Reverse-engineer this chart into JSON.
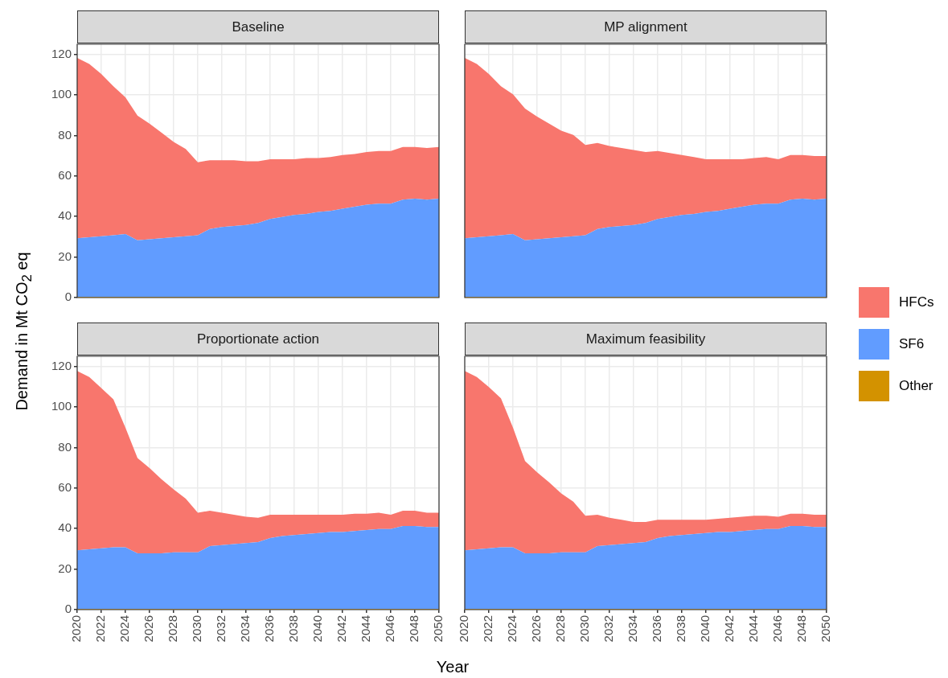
{
  "chart_data": [
    {
      "type": "area",
      "title": "Baseline",
      "ylabel": "Demand in Mt CO$_{2}$ eq",
      "legend": "right",
      "stacked": true,
      "x": [
        2020,
        2021,
        2022,
        2023,
        2024,
        2025,
        2026,
        2027,
        2028,
        2029,
        2030,
        2031,
        2032,
        2033,
        2034,
        2035,
        2036,
        2037,
        2038,
        2039,
        2040,
        2041,
        2042,
        2043,
        2044,
        2045,
        2046,
        2047,
        2048,
        2049,
        2050
      ],
      "xlim": [
        2020,
        2050
      ],
      "xticks": [
        2020,
        2022,
        2024,
        2026,
        2028,
        2030,
        2032,
        2034,
        2036,
        2038,
        2040,
        2042,
        2044,
        2046,
        2048,
        2050
      ],
      "ylim": [
        0,
        125
      ],
      "yticks": [
        0,
        20,
        40,
        60,
        80,
        100,
        120
      ],
      "grid": true,
      "tick_labels": "y",
      "series": [
        {
          "name": "Other",
          "color": "#d39200",
          "values": [
            0.3,
            0.3,
            0.3,
            0.3,
            0.3,
            0.3,
            0.3,
            0.3,
            0.3,
            0.3,
            0.3,
            0.3,
            0.3,
            0.3,
            0.3,
            0.3,
            0.3,
            0.3,
            0.3,
            0.3,
            0.3,
            0.3,
            0.3,
            0.3,
            0.3,
            0.3,
            0.3,
            0.3,
            0.3,
            0.3,
            0.3
          ]
        },
        {
          "name": "SF6",
          "color": "#619cff",
          "values": [
            29,
            29.5,
            30,
            30.5,
            31,
            28,
            28.5,
            29,
            29.5,
            30,
            30.5,
            33.5,
            34.5,
            35,
            35.5,
            36.5,
            38.5,
            39.5,
            40.5,
            41,
            42,
            42.5,
            43.5,
            44.5,
            45.5,
            46,
            46,
            48,
            48.5,
            48,
            48.5
          ]
        },
        {
          "name": "HFCs",
          "color": "#f8766d",
          "values": [
            89,
            85.5,
            80,
            73.5,
            67.5,
            61.5,
            57,
            52,
            47,
            43,
            36,
            34,
            33,
            32.5,
            31.5,
            30.5,
            29.5,
            28.5,
            27.5,
            27.5,
            26.5,
            26.5,
            26.5,
            26,
            26,
            26,
            26,
            26,
            25.5,
            25.5,
            25.5
          ]
        }
      ]
    },
    {
      "type": "area",
      "title": "MP alignment",
      "legend": "right",
      "stacked": true,
      "x": [
        2020,
        2021,
        2022,
        2023,
        2024,
        2025,
        2026,
        2027,
        2028,
        2029,
        2030,
        2031,
        2032,
        2033,
        2034,
        2035,
        2036,
        2037,
        2038,
        2039,
        2040,
        2041,
        2042,
        2043,
        2044,
        2045,
        2046,
        2047,
        2048,
        2049,
        2050
      ],
      "xlim": [
        2020,
        2050
      ],
      "xticks": [
        2020,
        2022,
        2024,
        2026,
        2028,
        2030,
        2032,
        2034,
        2036,
        2038,
        2040,
        2042,
        2044,
        2046,
        2048,
        2050
      ],
      "ylim": [
        0,
        125
      ],
      "yticks": [
        0,
        20,
        40,
        60,
        80,
        100,
        120
      ],
      "grid": true,
      "tick_labels": false,
      "series": [
        {
          "name": "Other",
          "color": "#d39200",
          "values": [
            0.3,
            0.3,
            0.3,
            0.3,
            0.3,
            0.3,
            0.3,
            0.3,
            0.3,
            0.3,
            0.3,
            0.3,
            0.3,
            0.3,
            0.3,
            0.3,
            0.3,
            0.3,
            0.3,
            0.3,
            0.3,
            0.3,
            0.3,
            0.3,
            0.3,
            0.3,
            0.3,
            0.3,
            0.3,
            0.3,
            0.3
          ]
        },
        {
          "name": "SF6",
          "color": "#619cff",
          "values": [
            29,
            29.5,
            30,
            30.5,
            31,
            28,
            28.5,
            29,
            29.5,
            30,
            30.5,
            33.5,
            34.5,
            35,
            35.5,
            36.5,
            38.5,
            39.5,
            40.5,
            41,
            42,
            42.5,
            43.5,
            44.5,
            45.5,
            46,
            46,
            48,
            48.5,
            48,
            48.5
          ]
        },
        {
          "name": "HFCs",
          "color": "#f8766d",
          "values": [
            89,
            85.5,
            80,
            73.5,
            69,
            65,
            60.5,
            56.5,
            52.5,
            50,
            44.5,
            42.5,
            40,
            38.5,
            37,
            35,
            33.5,
            31.5,
            29.5,
            28,
            26,
            25.5,
            24.5,
            23.5,
            23,
            23,
            22,
            22,
            21.5,
            21.5,
            21
          ]
        }
      ]
    },
    {
      "type": "area",
      "title": "Proportionate action",
      "xlabel": "Year",
      "legend": "right",
      "stacked": true,
      "x": [
        2020,
        2021,
        2022,
        2023,
        2024,
        2025,
        2026,
        2027,
        2028,
        2029,
        2030,
        2031,
        2032,
        2033,
        2034,
        2035,
        2036,
        2037,
        2038,
        2039,
        2040,
        2041,
        2042,
        2043,
        2044,
        2045,
        2046,
        2047,
        2048,
        2049,
        2050
      ],
      "xlim": [
        2020,
        2050
      ],
      "xticks": [
        2020,
        2022,
        2024,
        2026,
        2028,
        2030,
        2032,
        2034,
        2036,
        2038,
        2040,
        2042,
        2044,
        2046,
        2048,
        2050
      ],
      "ylim": [
        0,
        125
      ],
      "yticks": [
        0,
        20,
        40,
        60,
        80,
        100,
        120
      ],
      "grid": true,
      "series": [
        {
          "name": "Other",
          "color": "#d39200",
          "values": [
            0.3,
            0.3,
            0.3,
            0.3,
            0.3,
            0.3,
            0.3,
            0.3,
            0.3,
            0.3,
            0.3,
            0.3,
            0.3,
            0.3,
            0.3,
            0.3,
            0.3,
            0.3,
            0.3,
            0.3,
            0.3,
            0.3,
            0.3,
            0.3,
            0.3,
            0.3,
            0.3,
            0.3,
            0.3,
            0.3,
            0.3
          ]
        },
        {
          "name": "SF6",
          "color": "#619cff",
          "values": [
            29,
            29.5,
            30,
            30.5,
            30.5,
            27.5,
            27.5,
            27.5,
            28,
            28,
            28,
            31,
            31.5,
            32,
            32.5,
            33,
            35,
            36,
            36.5,
            37,
            37.5,
            38,
            38,
            38.5,
            39,
            39.5,
            39.5,
            41,
            41,
            40.5,
            40.5
          ]
        },
        {
          "name": "HFCs",
          "color": "#f8766d",
          "values": [
            88.5,
            85,
            79,
            73,
            59,
            47,
            42,
            36.5,
            31,
            26.5,
            19.5,
            17.5,
            16,
            14.5,
            13,
            12,
            11.5,
            10.5,
            10,
            9.5,
            9,
            8.5,
            8.5,
            8.5,
            8,
            8,
            7,
            7.5,
            7.5,
            7,
            7
          ]
        }
      ]
    },
    {
      "type": "area",
      "title": "Maximum feasibility",
      "legend": "right",
      "stacked": true,
      "x": [
        2020,
        2021,
        2022,
        2023,
        2024,
        2025,
        2026,
        2027,
        2028,
        2029,
        2030,
        2031,
        2032,
        2033,
        2034,
        2035,
        2036,
        2037,
        2038,
        2039,
        2040,
        2041,
        2042,
        2043,
        2044,
        2045,
        2046,
        2047,
        2048,
        2049,
        2050
      ],
      "xlim": [
        2020,
        2050
      ],
      "xticks": [
        2020,
        2022,
        2024,
        2026,
        2028,
        2030,
        2032,
        2034,
        2036,
        2038,
        2040,
        2042,
        2044,
        2046,
        2048,
        2050
      ],
      "ylim": [
        0,
        125
      ],
      "yticks": [
        0,
        20,
        40,
        60,
        80,
        100,
        120
      ],
      "grid": true,
      "tick_labels": "x",
      "series": [
        {
          "name": "Other",
          "color": "#d39200",
          "values": [
            0.3,
            0.3,
            0.3,
            0.3,
            0.3,
            0.3,
            0.3,
            0.3,
            0.3,
            0.3,
            0.3,
            0.3,
            0.3,
            0.3,
            0.3,
            0.3,
            0.3,
            0.3,
            0.3,
            0.3,
            0.3,
            0.3,
            0.3,
            0.3,
            0.3,
            0.3,
            0.3,
            0.3,
            0.3,
            0.3,
            0.3
          ]
        },
        {
          "name": "SF6",
          "color": "#619cff",
          "values": [
            29,
            29.5,
            30,
            30.5,
            30.5,
            27.5,
            27.5,
            27.5,
            28,
            28,
            28,
            31,
            31.5,
            32,
            32.5,
            33,
            35,
            36,
            36.5,
            37,
            37.5,
            38,
            38,
            38.5,
            39,
            39.5,
            39.5,
            41,
            41,
            40.5,
            40.5
          ]
        },
        {
          "name": "HFCs",
          "color": "#f8766d",
          "values": [
            88.5,
            85,
            79.5,
            73.5,
            59,
            45.5,
            40,
            35,
            29,
            25,
            18,
            15.5,
            13.5,
            12,
            10.5,
            10,
            9,
            8,
            7.5,
            7,
            6.5,
            6.5,
            7,
            7,
            7,
            6.5,
            6,
            6,
            6,
            6,
            6
          ]
        }
      ]
    }
  ]
}
